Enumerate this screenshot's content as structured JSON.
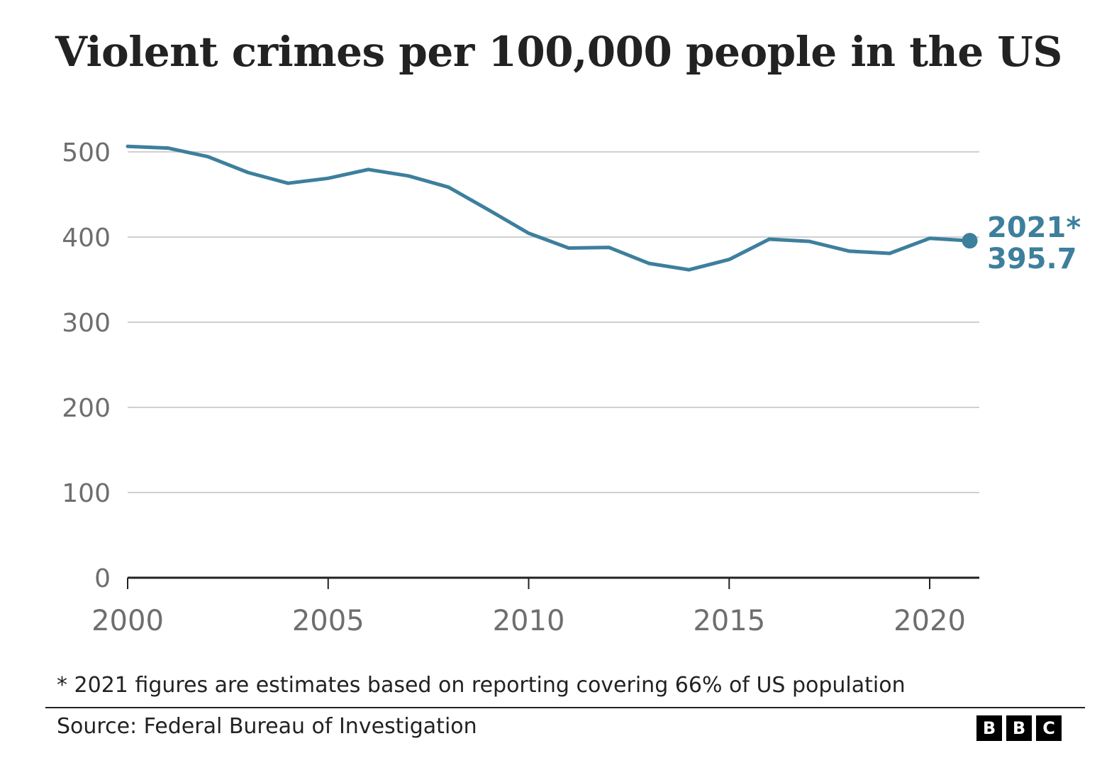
{
  "chart_data": {
    "type": "line",
    "title": "Violent crimes per 100,000 people in the US",
    "x": [
      2000,
      2001,
      2002,
      2003,
      2004,
      2005,
      2006,
      2007,
      2008,
      2009,
      2010,
      2011,
      2012,
      2013,
      2014,
      2015,
      2016,
      2017,
      2018,
      2019,
      2020,
      2021
    ],
    "series": [
      {
        "values": [
          506.5,
          504.5,
          494.4,
          475.8,
          463.2,
          469.0,
          479.3,
          471.8,
          458.6,
          431.9,
          404.5,
          387.1,
          387.8,
          369.1,
          361.6,
          373.7,
          397.5,
          394.9,
          383.4,
          380.8,
          398.5,
          395.7
        ],
        "color": "#3d7f9d"
      }
    ],
    "xlim": [
      2000,
      2021
    ],
    "ylim": [
      0,
      500
    ],
    "xticks": [
      "2000",
      "2005",
      "2010",
      "2015",
      "2020"
    ],
    "yticks": [
      "0",
      "100",
      "200",
      "300",
      "400",
      "500"
    ],
    "xlabel": "",
    "ylabel": "",
    "grid": true,
    "legend": "none",
    "end_label": {
      "year": "2021*",
      "value": "395.7"
    }
  },
  "footnote": "* 2021 figures are estimates based on reporting covering 66% of US population",
  "source": "Source: Federal Bureau of Investigation",
  "logo": [
    "B",
    "B",
    "C"
  ],
  "colors": {
    "line": "#3d7f9d",
    "grid": "#d0d0d0",
    "axis": "#222222",
    "tick_text": "#6e6e6e"
  }
}
